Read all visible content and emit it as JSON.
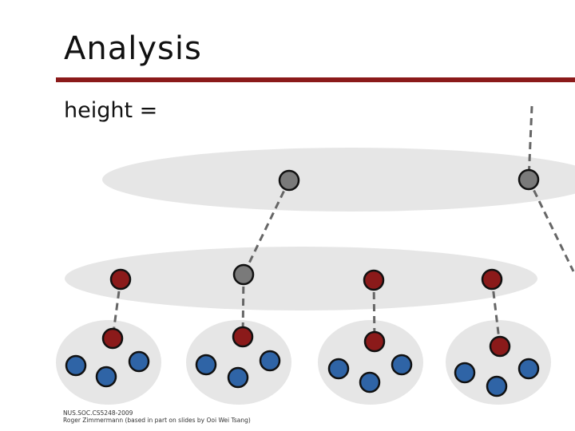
{
  "slide": {
    "title": "Analysis",
    "body_text": "height ="
  },
  "footer": {
    "line1": "NUS.SOC.CS5248-2009",
    "line2": "Roger Zimmermann (based in part on slides by Ooi Wei Tsang)"
  },
  "colors": {
    "accent_rule": "#8b1a1a",
    "red_node": "#8b1a1a",
    "blue_node": "#2f64a6",
    "gray_node": "#7a7a7a",
    "ellipse_fill": "#e6e6e6",
    "edge": "#666666"
  },
  "diagram": {
    "layers": [
      {
        "name": "top-layer",
        "nodes": [
          "gray",
          "gray"
        ]
      },
      {
        "name": "middle-layer",
        "nodes": [
          "red",
          "gray",
          "red",
          "red"
        ]
      },
      {
        "name": "bottom-clusters",
        "clusters": [
          {
            "head": "red",
            "members": [
              "blue",
              "blue",
              "blue"
            ]
          },
          {
            "head": "red",
            "members": [
              "blue",
              "blue",
              "blue"
            ]
          },
          {
            "head": "red",
            "members": [
              "blue",
              "blue",
              "blue"
            ]
          },
          {
            "head": "red",
            "members": [
              "blue",
              "blue",
              "blue"
            ]
          }
        ]
      }
    ]
  }
}
